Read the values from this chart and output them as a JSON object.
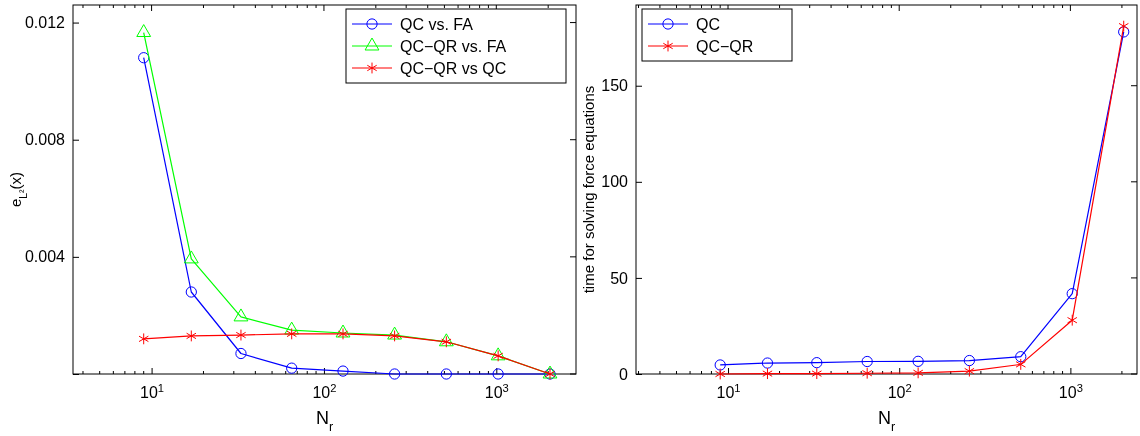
{
  "chart_data": [
    {
      "type": "line",
      "xlabel": "N$_{r}$",
      "ylabel": "e$_{L²}$(x)",
      "log": "x",
      "grid": false,
      "legend": "top right",
      "xlim": [
        3.5,
        2900
      ],
      "xticks": [
        {
          "value": 10,
          "label": "10$^{1}$"
        },
        {
          "value": 100,
          "label": "10$^{2}$"
        },
        {
          "value": 1000,
          "label": "10$^{3}$"
        }
      ],
      "ylim": [
        0,
        0.0126
      ],
      "yticks": [
        {
          "value": 0,
          "label": null
        },
        0.004,
        0.008,
        0.012
      ],
      "x": [
        9,
        17,
        33,
        65,
        129,
        257,
        513,
        1025,
        2049
      ],
      "series": [
        {
          "name": "QC vs. FA",
          "color": "#0000ff",
          "marker": "circle",
          "values": [
            0.0108,
            0.0028,
            0.0007,
            0.0002,
            0.0001,
            0,
            0,
            0,
            0
          ]
        },
        {
          "name": "QC−QR vs. FA",
          "color": "#00ff00",
          "marker": "triangle",
          "values": [
            0.01166,
            0.00393,
            0.00195,
            0.0015,
            0.0014,
            0.00133,
            0.0011,
            0.00062,
            0
          ]
        },
        {
          "name": "QC−QR vs QC",
          "color": "#ff0000",
          "marker": "cross",
          "values": [
            0.0012,
            0.0013,
            0.00133,
            0.00137,
            0.00137,
            0.0013,
            0.0011,
            0.00062,
            0
          ]
        }
      ]
    },
    {
      "type": "line",
      "xlabel": "N$_{r}$",
      "ylabel": "time for solving force equations",
      "log": "x",
      "grid": false,
      "legend": "top left",
      "xlim": [
        2.9,
        2450
      ],
      "xticks": [
        {
          "value": 10,
          "label": "10$^{1}$"
        },
        {
          "value": 100,
          "label": "10$^{2}$"
        },
        {
          "value": 1000,
          "label": "10$^{3}$"
        }
      ],
      "ylim": [
        0,
        192
      ],
      "yticks": [
        0,
        50,
        100,
        150
      ],
      "x": [
        9,
        17,
        33,
        65,
        129,
        257,
        513,
        1025,
        2049
      ],
      "series": [
        {
          "name": "QC",
          "color": "#0000ff",
          "marker": "circle",
          "values": [
            4.7,
            5.7,
            5.9,
            6.5,
            6.6,
            7,
            9,
            41.8,
            178
          ]
        },
        {
          "name": "QC−QR",
          "color": "#ff0000",
          "marker": "cross",
          "values": [
            0,
            0.2,
            0.2,
            0.4,
            0.6,
            1.5,
            5,
            28,
            181
          ]
        }
      ]
    }
  ]
}
